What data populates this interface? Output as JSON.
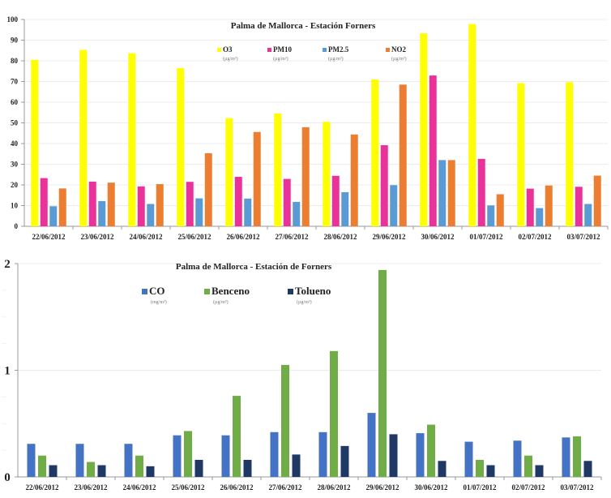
{
  "chart_data": [
    {
      "type": "bar",
      "title": "Palma de Mallorca -  Estación Forners",
      "xlabel": "",
      "ylabel": "",
      "ylim": [
        0,
        100
      ],
      "yticks": [
        0,
        10,
        20,
        30,
        40,
        50,
        60,
        70,
        80,
        90,
        100
      ],
      "grid": true,
      "legend_position": "top-center",
      "categories": [
        "22/06/2012",
        "23/06/2012",
        "24/06/2012",
        "25/06/2012",
        "26/06/2012",
        "27/06/2012",
        "28/06/2012",
        "29/06/2012",
        "30/06/2012",
        "01/07/2012",
        "02/07/2012",
        "03/07/2012"
      ],
      "series": [
        {
          "name": "O3",
          "unit": "(µg/m³)",
          "color": "#ffff00",
          "values": [
            80.5,
            85.3,
            83.7,
            76.5,
            52.3,
            54.6,
            50.5,
            71.0,
            93.3,
            97.8,
            69.2,
            69.7
          ]
        },
        {
          "name": "PM10",
          "unit": "(µg/m³)",
          "color": "#e8339a",
          "values": [
            23.3,
            21.6,
            19.3,
            21.5,
            23.9,
            22.9,
            24.4,
            39.2,
            72.9,
            32.6,
            18.2,
            19.1
          ]
        },
        {
          "name": "PM2.5",
          "unit": "(µg/m³)",
          "color": "#5b9bd5",
          "values": [
            9.7,
            12.2,
            10.8,
            13.5,
            13.4,
            11.8,
            16.5,
            19.9,
            32.0,
            10.1,
            8.8,
            10.8
          ]
        },
        {
          "name": "NO2",
          "unit": "(µg/m³)",
          "color": "#ed7d31",
          "values": [
            18.3,
            21.1,
            20.4,
            35.3,
            45.6,
            47.9,
            44.4,
            68.5,
            32.0,
            15.5,
            19.7,
            24.5
          ]
        }
      ]
    },
    {
      "type": "bar",
      "title": "Palma de Mallorca  - Estación de Forners",
      "xlabel": "",
      "ylabel": "",
      "ylim": [
        0,
        2
      ],
      "yticks": [
        0,
        1,
        2
      ],
      "grid": true,
      "legend_position": "top-center",
      "categories": [
        "22/06/2012",
        "23/06/2012",
        "24/06/2012",
        "25/06/2012",
        "26/06/2012",
        "27/06/2012",
        "28/06/2012",
        "29/06/2012",
        "30/06/2012",
        "01/07/2012",
        "02/07/2012",
        "03/07/2012"
      ],
      "series": [
        {
          "name": "CO",
          "unit": "(mg/m³)",
          "color": "#4472c4",
          "values": [
            0.31,
            0.31,
            0.31,
            0.39,
            0.39,
            0.42,
            0.42,
            0.6,
            0.41,
            0.33,
            0.34,
            0.37
          ]
        },
        {
          "name": "Benceno",
          "unit": "(µg/m³)",
          "color": "#70ad47",
          "values": [
            0.2,
            0.14,
            0.2,
            0.43,
            0.76,
            1.05,
            1.18,
            1.94,
            0.49,
            0.16,
            0.2,
            0.38
          ]
        },
        {
          "name": "Tolueno",
          "unit": "(µg/m³)",
          "color": "#203864",
          "values": [
            0.11,
            0.11,
            0.1,
            0.16,
            0.16,
            0.21,
            0.29,
            0.4,
            0.15,
            0.11,
            0.11,
            0.15
          ]
        }
      ]
    }
  ]
}
